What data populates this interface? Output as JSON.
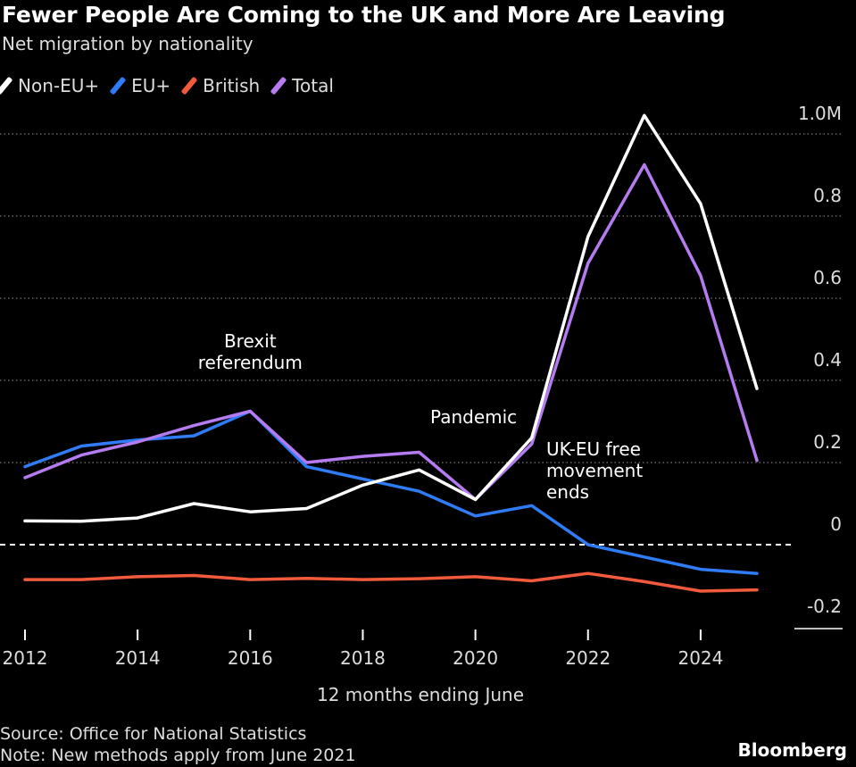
{
  "header": {
    "title": "Fewer People Are Coming to the UK and More Are Leaving",
    "subtitle": "Net migration by nationality"
  },
  "legend": [
    {
      "label": "Non-EU+",
      "color": "#ffffff"
    },
    {
      "label": "EU+",
      "color": "#2f7cf6"
    },
    {
      "label": "British",
      "color": "#f15a3a"
    },
    {
      "label": "Total",
      "color": "#b57bf0"
    }
  ],
  "footer": {
    "source": "Source: Office for National Statistics",
    "note": "Note: New methods apply from June 2021",
    "brand": "Bloomberg"
  },
  "chart_data": {
    "type": "line",
    "title": "Fewer People Are Coming to the UK and More Are Leaving",
    "subtitle": "Net migration by nationality",
    "xlabel": "12 months ending June",
    "ylabel": "",
    "x": [
      2012,
      2013,
      2014,
      2015,
      2016,
      2017,
      2018,
      2019,
      2020,
      2021,
      2022,
      2023,
      2024,
      2025
    ],
    "xticks": [
      "2012",
      "2014",
      "2016",
      "2018",
      "2020",
      "2022",
      "2024"
    ],
    "yticks": [
      "1.0M",
      "0.8",
      "0.6",
      "0.4",
      "0.2",
      "0",
      "-0.2"
    ],
    "ylim": [
      -0.2,
      1.0
    ],
    "grid": "horizontal dotted",
    "legend_position": "top-left",
    "series": [
      {
        "name": "Non-EU+",
        "color": "#ffffff",
        "values": [
          0.058,
          0.057,
          0.065,
          0.1,
          0.08,
          0.088,
          0.145,
          0.182,
          0.11,
          0.26,
          0.75,
          1.045,
          0.83,
          0.38
        ]
      },
      {
        "name": "EU+",
        "color": "#2f7cf6",
        "values": [
          0.19,
          0.24,
          0.255,
          0.265,
          0.325,
          0.19,
          0.16,
          0.13,
          0.07,
          0.095,
          0.0,
          -0.03,
          -0.06,
          -0.07
        ]
      },
      {
        "name": "British",
        "color": "#f15a3a",
        "values": [
          -0.085,
          -0.085,
          -0.078,
          -0.075,
          -0.085,
          -0.082,
          -0.085,
          -0.083,
          -0.078,
          -0.088,
          -0.07,
          -0.09,
          -0.113,
          -0.11
        ]
      },
      {
        "name": "Total",
        "color": "#b57bf0",
        "values": [
          0.163,
          0.218,
          0.25,
          0.29,
          0.325,
          0.2,
          0.215,
          0.225,
          0.11,
          0.245,
          0.685,
          0.925,
          0.655,
          0.205
        ]
      }
    ],
    "annotations": [
      {
        "text": [
          "Brexit",
          "referendum"
        ],
        "x": 2016
      },
      {
        "text": [
          "Pandemic"
        ],
        "x": 2020
      },
      {
        "text": [
          "UK-EU free",
          "movement",
          "ends"
        ],
        "x": 2021
      }
    ]
  }
}
